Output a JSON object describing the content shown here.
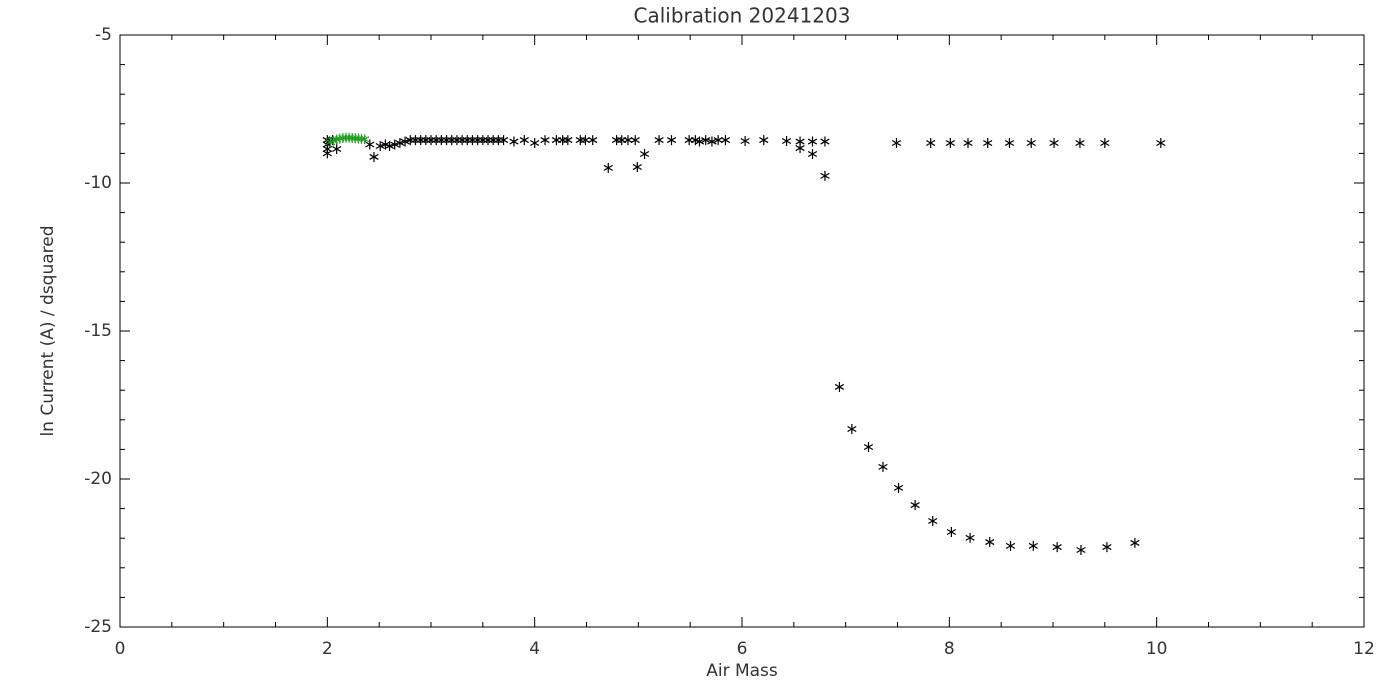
{
  "chart_data": {
    "type": "scatter",
    "title": "Calibration 20241203",
    "x_label": "Air Mass",
    "y_label": "ln Current (A) / dsquared",
    "xlim": [
      0,
      12
    ],
    "xticks": [
      0,
      2,
      4,
      6,
      8,
      10,
      12
    ],
    "xminor": 4,
    "ylim": [
      -25,
      -5
    ],
    "yticks": [
      -25,
      -20,
      -15,
      -10,
      -5
    ],
    "yminor": 5,
    "marker": "asterisk",
    "series": [
      {
        "color": "#000000",
        "x": [
          2.0,
          2.0,
          2.0,
          2.0,
          2.02,
          2.05,
          2.09,
          2.41,
          2.45,
          2.51,
          2.56,
          2.6,
          2.65,
          2.7,
          2.75,
          2.8,
          2.85,
          2.9,
          2.95,
          3.0,
          3.05,
          3.1,
          3.15,
          3.2,
          3.25,
          3.3,
          3.35,
          3.4,
          3.45,
          3.5,
          3.55,
          3.6,
          3.65,
          3.7,
          3.8,
          3.9,
          4.0,
          4.1,
          4.21,
          4.27,
          4.32,
          4.44,
          4.49,
          4.56,
          4.71,
          4.79,
          4.84,
          4.9,
          4.97,
          4.99,
          5.06,
          5.2,
          5.32,
          5.49,
          5.55,
          5.59,
          5.65,
          5.71,
          5.77,
          5.84,
          6.03,
          6.21,
          6.43,
          6.56,
          6.56,
          6.68,
          6.68,
          6.8,
          6.8,
          6.94,
          7.06,
          7.22,
          7.36,
          7.51,
          7.67,
          7.84,
          8.02,
          8.2,
          8.39,
          8.59,
          8.81,
          9.04,
          9.27,
          9.52,
          9.79,
          7.49,
          7.82,
          8.01,
          8.18,
          8.37,
          8.58,
          8.79,
          9.01,
          9.26,
          9.5,
          10.04
        ],
        "values": [
          -8.55,
          -8.7,
          -8.85,
          -9.0,
          -8.6,
          -8.55,
          -8.85,
          -8.7,
          -9.12,
          -8.75,
          -8.7,
          -8.75,
          -8.7,
          -8.65,
          -8.6,
          -8.55,
          -8.55,
          -8.55,
          -8.55,
          -8.55,
          -8.55,
          -8.55,
          -8.55,
          -8.55,
          -8.55,
          -8.55,
          -8.55,
          -8.55,
          -8.55,
          -8.55,
          -8.55,
          -8.55,
          -8.55,
          -8.55,
          -8.6,
          -8.55,
          -8.65,
          -8.55,
          -8.55,
          -8.55,
          -8.55,
          -8.55,
          -8.55,
          -8.55,
          -9.49,
          -8.55,
          -8.55,
          -8.55,
          -8.55,
          -9.46,
          -9.02,
          -8.55,
          -8.55,
          -8.55,
          -8.55,
          -8.6,
          -8.55,
          -8.6,
          -8.55,
          -8.55,
          -8.58,
          -8.55,
          -8.58,
          -8.6,
          -8.82,
          -8.6,
          -9.02,
          -8.6,
          -9.76,
          -16.89,
          -18.31,
          -18.92,
          -19.59,
          -20.3,
          -20.88,
          -21.42,
          -21.79,
          -21.99,
          -22.13,
          -22.26,
          -22.26,
          -22.3,
          -22.4,
          -22.3,
          -22.16,
          -8.65,
          -8.65,
          -8.65,
          -8.65,
          -8.65,
          -8.65,
          -8.65,
          -8.65,
          -8.65,
          -8.65,
          -8.65
        ]
      },
      {
        "color": "#22a022",
        "x": [
          2.03,
          2.06,
          2.09,
          2.12,
          2.15,
          2.18,
          2.21,
          2.24,
          2.27,
          2.3,
          2.33,
          2.36
        ],
        "values": [
          -8.62,
          -8.57,
          -8.53,
          -8.5,
          -8.48,
          -8.47,
          -8.47,
          -8.48,
          -8.49,
          -8.5,
          -8.51,
          -8.52
        ]
      }
    ]
  }
}
